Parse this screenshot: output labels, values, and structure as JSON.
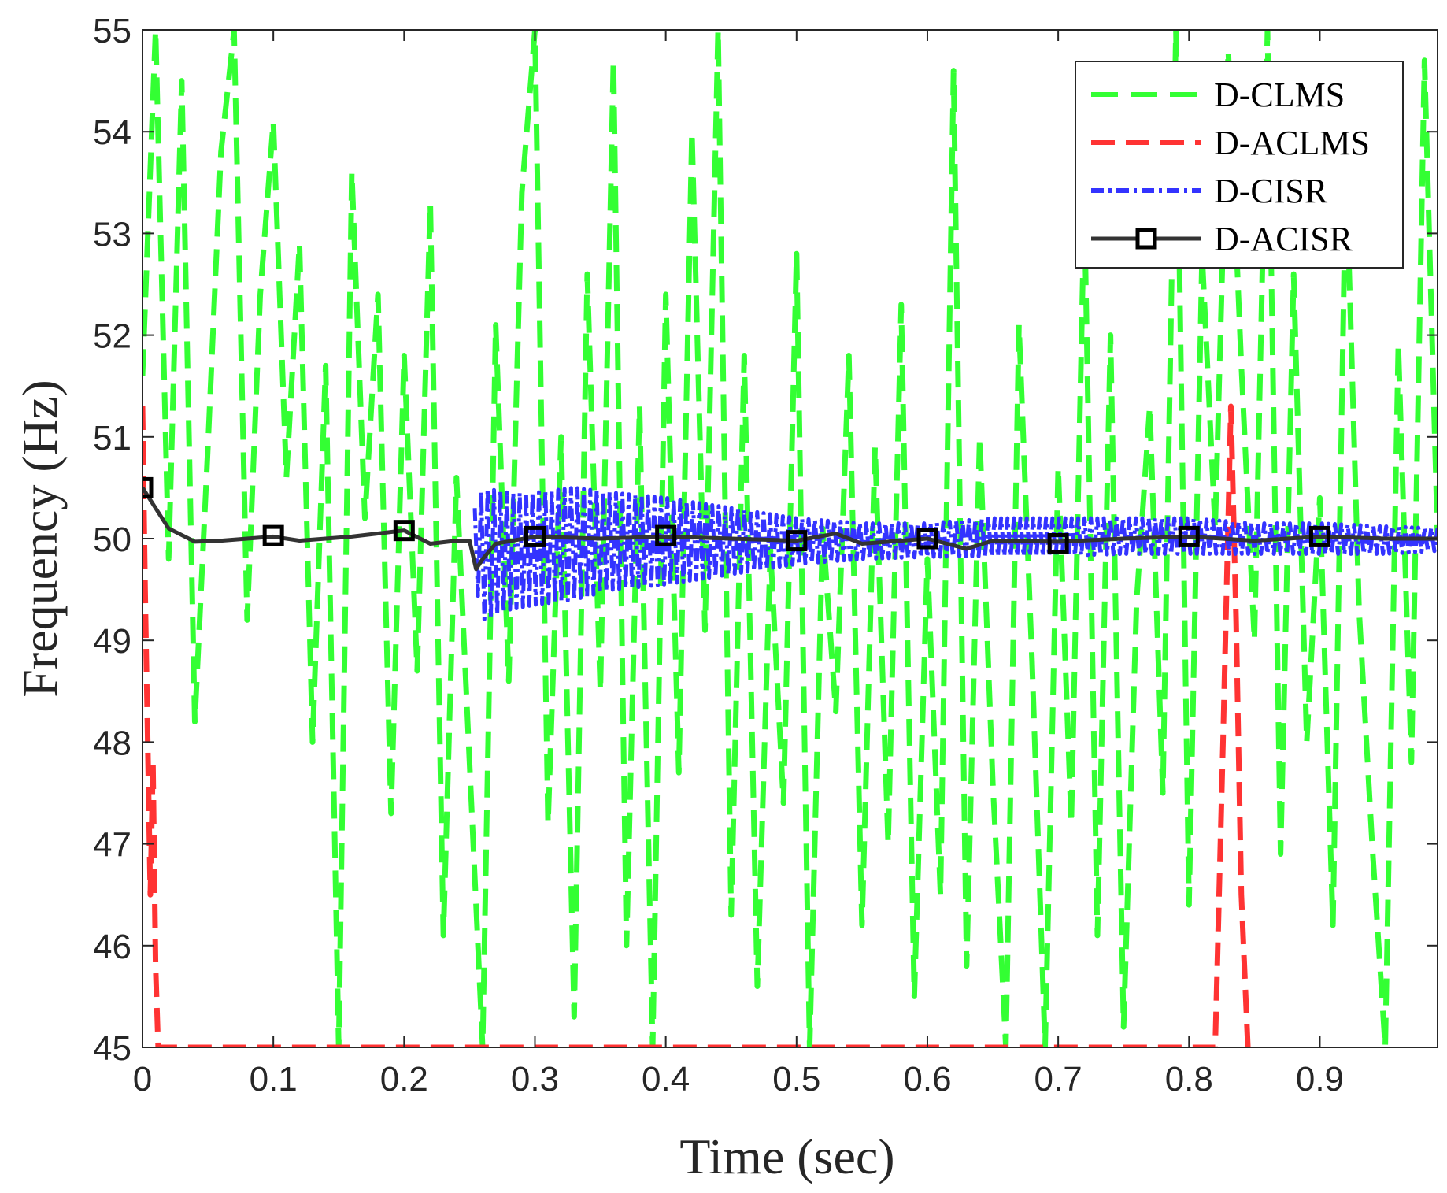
{
  "chart_data": {
    "type": "line",
    "title": "",
    "xlabel": "Time (sec)",
    "ylabel": "Frequency (Hz)",
    "xlim": [
      0,
      0.99
    ],
    "ylim": [
      45,
      55
    ],
    "xticks": [
      0,
      0.1,
      0.2,
      0.3,
      0.4,
      0.5,
      0.6,
      0.7,
      0.8,
      0.9
    ],
    "xtick_labels": [
      "0",
      "0.1",
      "0.2",
      "0.3",
      "0.4",
      "0.5",
      "0.6",
      "0.7",
      "0.8",
      "0.9"
    ],
    "yticks": [
      45,
      46,
      47,
      48,
      49,
      50,
      51,
      52,
      53,
      54,
      55
    ],
    "ytick_labels": [
      "45",
      "46",
      "47",
      "48",
      "49",
      "50",
      "51",
      "52",
      "53",
      "54",
      "55"
    ],
    "grid": false,
    "legend_position": "top-right",
    "series": [
      {
        "name": "D-CLMS",
        "color": "#33ff33",
        "style": "dashed",
        "x": [
          0.0,
          0.01,
          0.02,
          0.03,
          0.04,
          0.05,
          0.06,
          0.07,
          0.08,
          0.09,
          0.1,
          0.11,
          0.12,
          0.13,
          0.14,
          0.15,
          0.16,
          0.17,
          0.18,
          0.19,
          0.2,
          0.21,
          0.22,
          0.23,
          0.24,
          0.25,
          0.26,
          0.27,
          0.28,
          0.29,
          0.3,
          0.31,
          0.32,
          0.33,
          0.34,
          0.35,
          0.36,
          0.37,
          0.38,
          0.39,
          0.4,
          0.41,
          0.42,
          0.43,
          0.44,
          0.45,
          0.46,
          0.47,
          0.48,
          0.49,
          0.5,
          0.51,
          0.52,
          0.53,
          0.54,
          0.55,
          0.56,
          0.57,
          0.58,
          0.59,
          0.6,
          0.61,
          0.62,
          0.63,
          0.64,
          0.65,
          0.66,
          0.67,
          0.68,
          0.69,
          0.7,
          0.71,
          0.72,
          0.73,
          0.74,
          0.75,
          0.76,
          0.77,
          0.78,
          0.79,
          0.8,
          0.81,
          0.82,
          0.83,
          0.84,
          0.85,
          0.86,
          0.87,
          0.88,
          0.89,
          0.9,
          0.91,
          0.92,
          0.93,
          0.94,
          0.95,
          0.96,
          0.97,
          0.98,
          0.99
        ],
        "y": [
          51.6,
          55.0,
          49.8,
          54.5,
          48.2,
          50.9,
          53.8,
          55.0,
          49.2,
          52.4,
          54.1,
          50.6,
          52.9,
          48.0,
          51.7,
          45.0,
          53.6,
          50.2,
          52.4,
          47.3,
          51.8,
          48.7,
          53.3,
          46.1,
          50.6,
          47.8,
          45.0,
          52.1,
          48.6,
          53.4,
          55.0,
          47.2,
          51.0,
          45.3,
          52.6,
          48.5,
          54.7,
          46.0,
          51.3,
          45.0,
          52.4,
          47.7,
          54.0,
          49.1,
          55.0,
          46.3,
          51.8,
          45.6,
          49.9,
          47.4,
          52.8,
          45.0,
          50.1,
          48.3,
          51.8,
          46.2,
          50.9,
          47.0,
          52.3,
          45.5,
          49.8,
          46.5,
          54.6,
          45.8,
          51.0,
          47.6,
          45.0,
          52.1,
          48.8,
          45.0,
          50.7,
          47.2,
          53.3,
          46.1,
          52.0,
          45.2,
          49.4,
          51.3,
          47.5,
          55.0,
          46.4,
          52.8,
          50.1,
          54.8,
          51.7,
          49.0,
          55.0,
          46.9,
          52.6,
          48.0,
          50.4,
          46.2,
          53.7,
          49.3,
          47.0,
          45.0,
          51.9,
          47.8,
          54.7,
          50.0
        ]
      },
      {
        "name": "D-ACLMS",
        "color": "#ff3333",
        "style": "dashed",
        "x": [
          0.0,
          0.002,
          0.004,
          0.006,
          0.008,
          0.01,
          0.012,
          0.82,
          0.826,
          0.832,
          0.836,
          0.84,
          0.845
        ],
        "y": [
          51.3,
          49.5,
          48.0,
          46.5,
          47.8,
          45.8,
          45.0,
          45.0,
          48.0,
          51.3,
          49.2,
          46.5,
          45.0
        ]
      },
      {
        "name": "D-CISR",
        "color": "#3333ff",
        "style": "dash-dot",
        "x": [
          0.254,
          0.26,
          0.28,
          0.3,
          0.33,
          0.36,
          0.4,
          0.45,
          0.5,
          0.55,
          0.6,
          0.65,
          0.7,
          0.75,
          0.8,
          0.85,
          0.9,
          0.95,
          0.99
        ],
        "envelope_upper": [
          50.3,
          50.5,
          50.45,
          50.45,
          50.5,
          50.45,
          50.4,
          50.3,
          50.2,
          50.15,
          50.15,
          50.2,
          50.2,
          50.2,
          50.2,
          50.15,
          50.15,
          50.12,
          50.1
        ],
        "envelope_lower": [
          49.6,
          49.2,
          49.3,
          49.35,
          49.4,
          49.5,
          49.55,
          49.65,
          49.75,
          49.8,
          49.82,
          49.83,
          49.83,
          49.85,
          49.85,
          49.85,
          49.85,
          49.85,
          49.88
        ]
      },
      {
        "name": "D-ACISR",
        "color": "#333333",
        "style": "solid",
        "marker": "square",
        "x": [
          0.0,
          0.02,
          0.04,
          0.06,
          0.08,
          0.1,
          0.12,
          0.14,
          0.16,
          0.18,
          0.2,
          0.22,
          0.24,
          0.25,
          0.255,
          0.26,
          0.27,
          0.3,
          0.35,
          0.4,
          0.45,
          0.5,
          0.53,
          0.55,
          0.6,
          0.63,
          0.65,
          0.7,
          0.75,
          0.8,
          0.85,
          0.9,
          0.95,
          0.99
        ],
        "y": [
          50.5,
          50.1,
          49.97,
          49.98,
          50.0,
          50.02,
          49.98,
          50.0,
          50.02,
          50.05,
          50.08,
          49.95,
          49.98,
          49.98,
          49.7,
          49.8,
          49.95,
          50.02,
          50.0,
          50.02,
          50.0,
          49.98,
          50.05,
          49.95,
          50.0,
          49.9,
          49.98,
          49.97,
          50.0,
          50.02,
          49.98,
          50.02,
          50.0,
          50.0
        ],
        "marker_x": [
          0.0,
          0.1,
          0.2,
          0.3,
          0.4,
          0.5,
          0.6,
          0.7,
          0.8,
          0.9
        ],
        "marker_y": [
          50.5,
          50.03,
          50.08,
          50.02,
          50.03,
          49.98,
          50.0,
          49.95,
          50.02,
          50.02
        ]
      }
    ]
  }
}
